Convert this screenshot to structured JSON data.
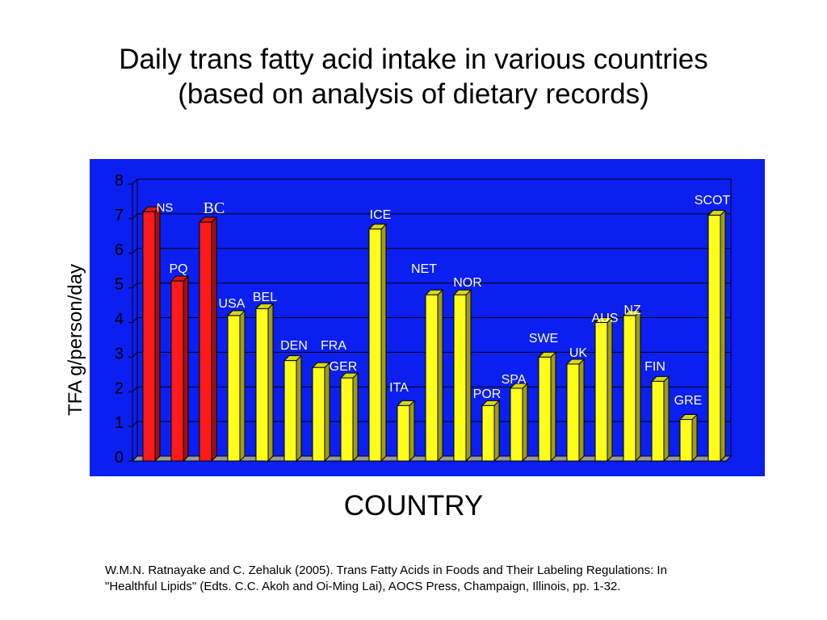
{
  "title_line1": "Daily trans fatty acid intake in various countries",
  "title_line2": "(based on analysis of dietary records)",
  "citation_line1": "W.M.N. Ratnayake and C. Zehaluk (2005). Trans Fatty Acids in Foods and Their Labeling Regulations: In",
  "citation_line2": "\"Healthful Lipids\" (Edts. C.C. Akoh and Oi-Ming Lai), AOCS Press, Champaign, Illinois, pp. 1-32.",
  "chart_data": {
    "type": "bar",
    "title": "Daily trans fatty acid intake in various countries",
    "subtitle": "(based on analysis of dietary records)",
    "xlabel": "COUNTRY",
    "ylabel": "TFA g/person/day",
    "ylim": [
      0,
      8
    ],
    "yticks": [
      "0",
      "1",
      "2",
      "3",
      "4",
      "5",
      "6",
      "7",
      "8"
    ],
    "grid": true,
    "plot_background": "#0a1ff0",
    "colors": {
      "canadian": "#ff1a1a",
      "other": "#ffff1a"
    },
    "categories": [
      "NS",
      "PQ",
      "BC",
      "USA",
      "BEL",
      "DEN",
      "FRA",
      "GER",
      "ICE",
      "ITA",
      "NET",
      "NOR",
      "POR",
      "SPA",
      "SWE",
      "UK",
      "AUS",
      "NZ",
      "FIN",
      "GRE",
      "SCOT"
    ],
    "values": [
      7.2,
      5.2,
      6.9,
      4.2,
      4.4,
      2.9,
      2.7,
      2.4,
      6.7,
      1.6,
      4.8,
      4.8,
      1.6,
      2.1,
      3.0,
      2.8,
      4.0,
      4.2,
      2.3,
      1.2,
      7.1
    ],
    "bar_colors": [
      "#ff1a1a",
      "#ff1a1a",
      "#ff1a1a",
      "#ffff1a",
      "#ffff1a",
      "#ffff1a",
      "#ffff1a",
      "#ffff1a",
      "#ffff1a",
      "#ffff1a",
      "#ffff1a",
      "#ffff1a",
      "#ffff1a",
      "#ffff1a",
      "#ffff1a",
      "#ffff1a",
      "#ffff1a",
      "#ffff1a",
      "#ffff1a",
      "#ffff1a",
      "#ffff1a"
    ]
  }
}
